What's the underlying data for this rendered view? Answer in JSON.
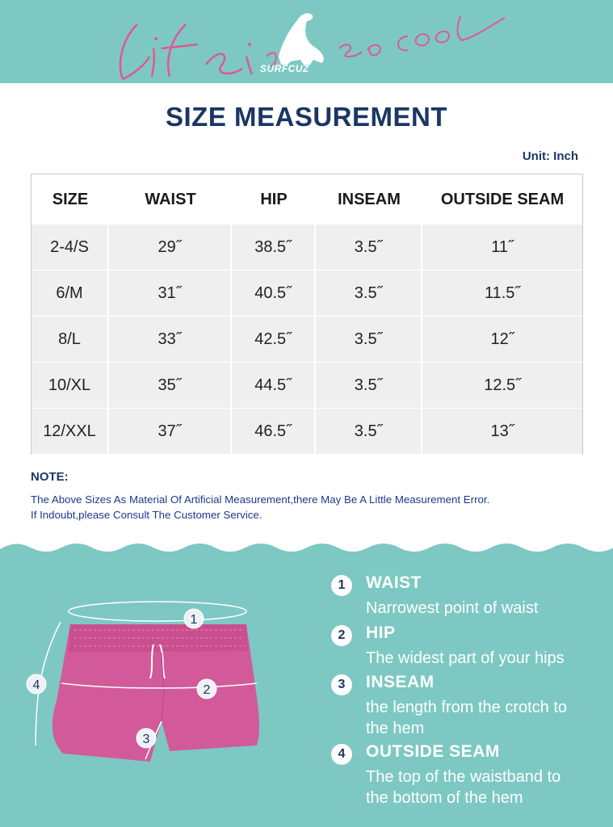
{
  "banner": {
    "script_text_1": "Life is",
    "script_text_2": "so cool",
    "brand": "SURFCUZ",
    "background": "#7dc8c3",
    "script_color": "#e0598f"
  },
  "title": "SIZE MEASUREMENT",
  "unit": "Unit: Inch",
  "table": {
    "headers": [
      "SIZE",
      "WAIST",
      "HIP",
      "INSEAM",
      "OUTSIDE SEAM"
    ],
    "rows": [
      [
        "2-4/S",
        "29˝",
        "38.5˝",
        "3.5˝",
        "11˝"
      ],
      [
        "6/M",
        "31˝",
        "40.5˝",
        "3.5˝",
        "11.5˝"
      ],
      [
        "8/L",
        "33˝",
        "42.5˝",
        "3.5˝",
        "12˝"
      ],
      [
        "10/XL",
        "35˝",
        "44.5˝",
        "3.5˝",
        "12.5˝"
      ],
      [
        "12/XXL",
        "37˝",
        "46.5˝",
        "3.5˝",
        "13˝"
      ]
    ]
  },
  "note": {
    "heading": "NOTE:",
    "line1": "The Above Sizes As Material Of Artificial Measurement,there May Be A Little Measurement Error.",
    "line2": "If Indoubt,please Consult The Customer Service."
  },
  "figure": {
    "shorts_color": "#d35a9a",
    "waistband_color": "#c94f8e",
    "markers": [
      "1",
      "2",
      "3",
      "4"
    ]
  },
  "legend": [
    {
      "num": "1",
      "title": "WAIST",
      "desc": [
        "Narrowest point of waist"
      ]
    },
    {
      "num": "2",
      "title": "HIP",
      "desc": [
        "The widest part of your hips"
      ]
    },
    {
      "num": "3",
      "title": "INSEAM",
      "desc": [
        "the length from the crotch to",
        "the hem"
      ]
    },
    {
      "num": "4",
      "title": "OUTSIDE SEAM",
      "desc": [
        "The top of the waistband to",
        "the bottom of the hem"
      ]
    }
  ],
  "accent": "#7dc8c3",
  "navy": "#1c3664"
}
